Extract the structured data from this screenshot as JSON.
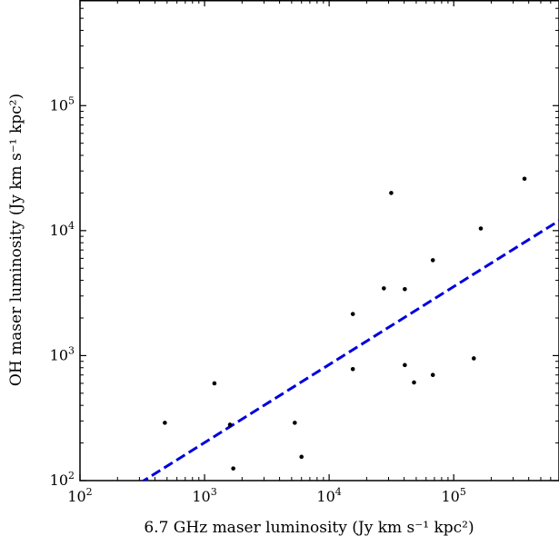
{
  "chart_data": {
    "type": "scatter",
    "title": "",
    "xlabel": "6.7 GHz maser luminosity (Jy km s⁻¹ kpc²)",
    "ylabel": "OH maser luminosity (Jy km s⁻¹ kpc²)",
    "xscale": "log",
    "yscale": "log",
    "xlim": [
      100,
      700000
    ],
    "ylim": [
      100,
      700000
    ],
    "x_ticks": [
      {
        "value": 100,
        "base": "10",
        "exp": "2"
      },
      {
        "value": 1000,
        "base": "10",
        "exp": "3"
      },
      {
        "value": 10000,
        "base": "10",
        "exp": "4"
      },
      {
        "value": 100000,
        "base": "10",
        "exp": "5"
      }
    ],
    "y_ticks": [
      {
        "value": 100,
        "base": "10",
        "exp": "2"
      },
      {
        "value": 1000,
        "base": "10",
        "exp": "3"
      },
      {
        "value": 10000,
        "base": "10",
        "exp": "4"
      },
      {
        "value": 100000,
        "base": "10",
        "exp": "5"
      }
    ],
    "grid": false,
    "series": [
      {
        "marker_color": "#000000",
        "points": [
          {
            "x": 480,
            "y": 290
          },
          {
            "x": 1200,
            "y": 600
          },
          {
            "x": 1600,
            "y": 280
          },
          {
            "x": 1700,
            "y": 125
          },
          {
            "x": 5300,
            "y": 290
          },
          {
            "x": 6000,
            "y": 155
          },
          {
            "x": 15500,
            "y": 2150
          },
          {
            "x": 15500,
            "y": 780
          },
          {
            "x": 27500,
            "y": 3450
          },
          {
            "x": 31500,
            "y": 20000
          },
          {
            "x": 40500,
            "y": 3400
          },
          {
            "x": 40500,
            "y": 840
          },
          {
            "x": 48000,
            "y": 610
          },
          {
            "x": 68000,
            "y": 5800
          },
          {
            "x": 68000,
            "y": 700
          },
          {
            "x": 145000,
            "y": 950
          },
          {
            "x": 165000,
            "y": 10400
          },
          {
            "x": 370000,
            "y": 26000
          }
        ]
      }
    ],
    "fit_line": {
      "style": "dashed",
      "color": "#0000dd",
      "points": [
        {
          "x": 300,
          "y": 95
        },
        {
          "x": 700000,
          "y": 12000
        }
      ]
    }
  }
}
